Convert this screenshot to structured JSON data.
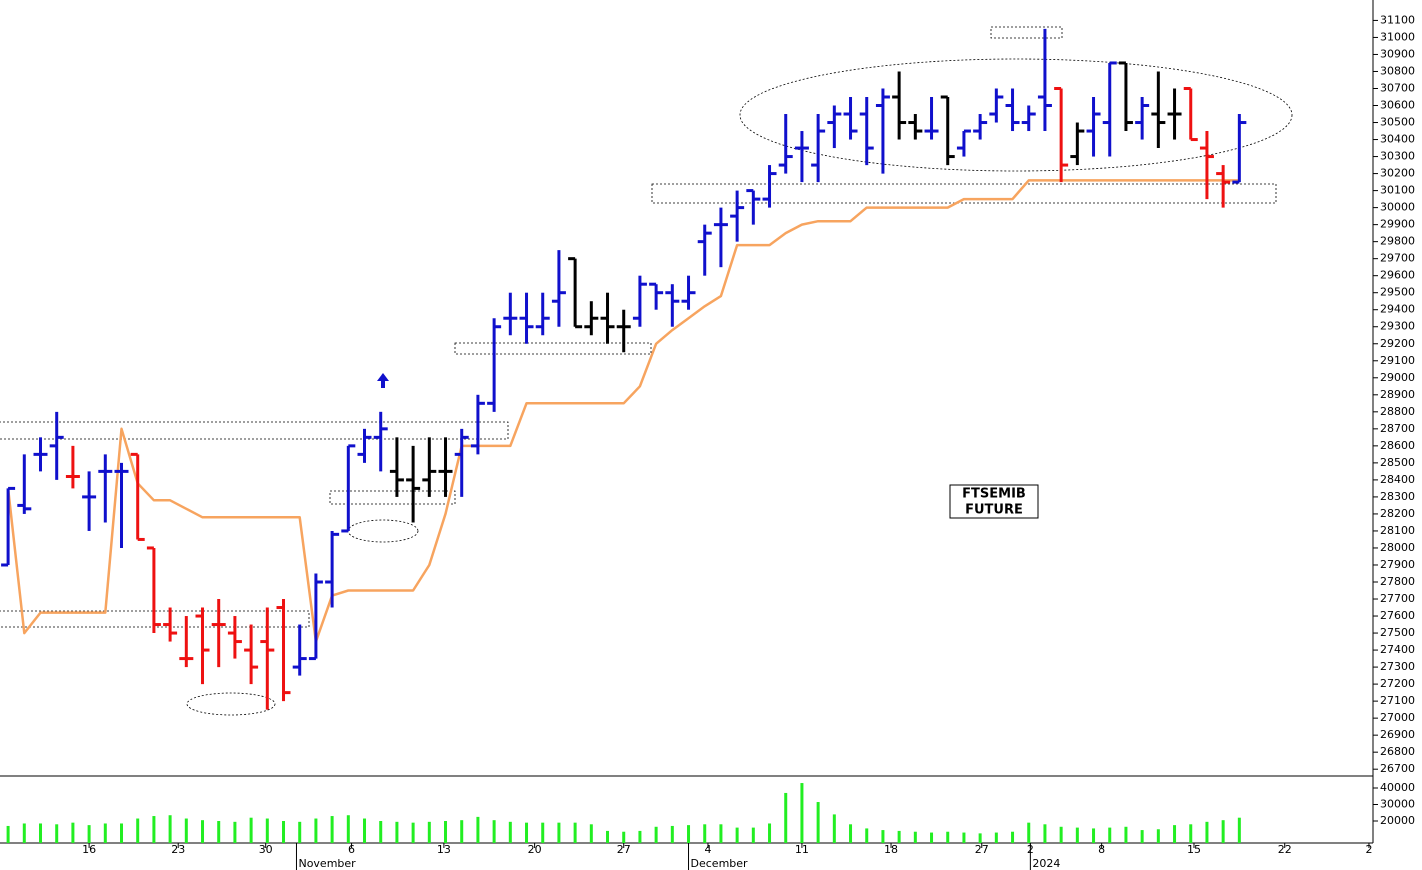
{
  "chart_data": {
    "type": "ohlc",
    "x": [
      0,
      1,
      2,
      3,
      4,
      5,
      6,
      7,
      8,
      9,
      10,
      11,
      12,
      13,
      14,
      15,
      16,
      17,
      18,
      19,
      20,
      21,
      22,
      23,
      24,
      25,
      26,
      27,
      28,
      29,
      30,
      31,
      32,
      33,
      34,
      35,
      36,
      37,
      38,
      39,
      40,
      41,
      42,
      43,
      44,
      45,
      46,
      47,
      48,
      49,
      50,
      51,
      52,
      53,
      54,
      55,
      56,
      57,
      58,
      59,
      60,
      61,
      62,
      63,
      64,
      65,
      66,
      67,
      68,
      69,
      70,
      71,
      72,
      73,
      74,
      75,
      76
    ],
    "open": [
      27900,
      28250,
      28550,
      28600,
      28420,
      28300,
      28450,
      28450,
      28550,
      28000,
      27550,
      27350,
      27600,
      27550,
      27500,
      27400,
      27450,
      27650,
      27300,
      27350,
      27800,
      28100,
      28550,
      28650,
      28450,
      28400,
      28400,
      28450,
      28550,
      28600,
      28850,
      29350,
      29350,
      29300,
      29450,
      29700,
      29300,
      29350,
      29300,
      29350,
      29550,
      29500,
      29450,
      29800,
      29900,
      29950,
      30100,
      30050,
      30250,
      30350,
      30250,
      30500,
      30550,
      30550,
      30600,
      30650,
      30500,
      30450,
      30650,
      30350,
      30450,
      30550,
      30600,
      30500,
      30650,
      30700,
      30300,
      30450,
      30500,
      30850,
      30500,
      30550,
      30550,
      30700,
      30350,
      30200,
      30150
    ],
    "high": [
      28350,
      28550,
      28650,
      28800,
      28600,
      28450,
      28550,
      28500,
      28550,
      28000,
      27650,
      27600,
      27650,
      27700,
      27600,
      27550,
      27650,
      27700,
      27550,
      27850,
      28100,
      28600,
      28700,
      28800,
      28650,
      28600,
      28650,
      28650,
      28700,
      28900,
      29350,
      29500,
      29500,
      29500,
      29750,
      29700,
      29450,
      29500,
      29400,
      29600,
      29550,
      29550,
      29600,
      29900,
      30000,
      30100,
      30100,
      30250,
      30550,
      30450,
      30550,
      30600,
      30650,
      30650,
      30700,
      30800,
      30550,
      30650,
      30650,
      30450,
      30550,
      30700,
      30700,
      30600,
      31050,
      30700,
      30500,
      30650,
      30850,
      30850,
      30650,
      30800,
      30700,
      30700,
      30450,
      30250,
      30550
    ],
    "low": [
      27900,
      28200,
      28450,
      28400,
      28350,
      28100,
      28150,
      28000,
      28050,
      27500,
      27450,
      27300,
      27200,
      27300,
      27350,
      27200,
      27050,
      27100,
      27250,
      27350,
      27650,
      28100,
      28500,
      28450,
      28300,
      28150,
      28300,
      28300,
      28300,
      28550,
      28800,
      29250,
      29200,
      29250,
      29300,
      29300,
      29250,
      29200,
      29150,
      29300,
      29400,
      29300,
      29400,
      29600,
      29650,
      29800,
      29900,
      30000,
      30200,
      30150,
      30150,
      30350,
      30400,
      30250,
      30200,
      30400,
      30400,
      30400,
      30250,
      30300,
      30400,
      30500,
      30450,
      30450,
      30450,
      30150,
      30250,
      30300,
      30300,
      30450,
      30400,
      30350,
      30400,
      30400,
      30050,
      30000,
      30150
    ],
    "close": [
      28350,
      28230,
      28550,
      28650,
      28420,
      28300,
      28450,
      28450,
      28050,
      27550,
      27500,
      27350,
      27400,
      27550,
      27450,
      27300,
      27400,
      27150,
      27350,
      27800,
      28080,
      28600,
      28650,
      28700,
      28400,
      28350,
      28450,
      28450,
      28650,
      28850,
      29300,
      29350,
      29300,
      29350,
      29500,
      29300,
      29350,
      29300,
      29300,
      29550,
      29500,
      29450,
      29500,
      29850,
      29900,
      30000,
      30050,
      30200,
      30300,
      30350,
      30450,
      30550,
      30450,
      30350,
      30650,
      30500,
      30450,
      30450,
      30300,
      30450,
      30500,
      30650,
      30500,
      30550,
      30600,
      30250,
      30450,
      30550,
      30850,
      30500,
      30600,
      30500,
      30550,
      30400,
      30300,
      30150,
      30500
    ],
    "colors": [
      "#1010cc",
      "#1010cc",
      "#1010cc",
      "#1010cc",
      "#ee1111",
      "#1010cc",
      "#1010cc",
      "#1010cc",
      "#ee1111",
      "#ee1111",
      "#ee1111",
      "#ee1111",
      "#ee1111",
      "#ee1111",
      "#ee1111",
      "#ee1111",
      "#ee1111",
      "#ee1111",
      "#1010cc",
      "#1010cc",
      "#1010cc",
      "#1010cc",
      "#1010cc",
      "#1010cc",
      "#000000",
      "#000000",
      "#000000",
      "#000000",
      "#1010cc",
      "#1010cc",
      "#1010cc",
      "#1010cc",
      "#1010cc",
      "#1010cc",
      "#1010cc",
      "#000000",
      "#000000",
      "#000000",
      "#000000",
      "#1010cc",
      "#1010cc",
      "#1010cc",
      "#1010cc",
      "#1010cc",
      "#1010cc",
      "#1010cc",
      "#1010cc",
      "#1010cc",
      "#1010cc",
      "#1010cc",
      "#1010cc",
      "#1010cc",
      "#1010cc",
      "#1010cc",
      "#1010cc",
      "#000000",
      "#000000",
      "#1010cc",
      "#000000",
      "#1010cc",
      "#1010cc",
      "#1010cc",
      "#1010cc",
      "#1010cc",
      "#1010cc",
      "#ee1111",
      "#000000",
      "#1010cc",
      "#1010cc",
      "#000000",
      "#1010cc",
      "#000000",
      "#000000",
      "#ee1111",
      "#ee1111",
      "#ee1111",
      "#1010cc"
    ],
    "line": {
      "color": "#f7a45f",
      "values": [
        28350,
        27500,
        27620,
        27620,
        27620,
        27620,
        27620,
        28700,
        28380,
        28280,
        28280,
        28230,
        28180,
        28180,
        28180,
        28180,
        28180,
        28180,
        28180,
        27450,
        27720,
        27750,
        27750,
        27750,
        27750,
        27750,
        27900,
        28200,
        28600,
        28600,
        28600,
        28600,
        28850,
        28850,
        28850,
        28850,
        28850,
        28850,
        28850,
        28950,
        29200,
        29280,
        29350,
        29420,
        29480,
        29780,
        29780,
        29780,
        29850,
        29900,
        29920,
        29920,
        29920,
        30000,
        30000,
        30000,
        30000,
        30000,
        30000,
        30050,
        30050,
        30050,
        30050,
        30160,
        30160,
        30160,
        30160,
        30160,
        30160,
        30160,
        30160,
        30160,
        30160,
        30160,
        30160,
        30160,
        30160
      ]
    },
    "volume": {
      "color": "#22ee22",
      "values": [
        17000,
        18500,
        18500,
        18000,
        19000,
        17500,
        18500,
        18500,
        21500,
        23000,
        23500,
        21500,
        20500,
        20000,
        19500,
        22000,
        21500,
        20000,
        19500,
        21500,
        23000,
        23500,
        21500,
        20000,
        19500,
        19000,
        19500,
        20000,
        20500,
        22500,
        20500,
        19500,
        19000,
        19000,
        19000,
        19000,
        18000,
        14000,
        13500,
        14000,
        16500,
        17000,
        17500,
        18000,
        18000,
        16000,
        16000,
        18500,
        37000,
        43000,
        31500,
        24000,
        18000,
        15500,
        14500,
        14000,
        13500,
        13000,
        13500,
        13000,
        12500,
        13000,
        13500,
        19000,
        18000,
        16500,
        16000,
        15500,
        16000,
        16500,
        14500,
        15000,
        17500,
        18000,
        19500,
        20500,
        22000
      ],
      "ylim": [
        6670,
        47270
      ],
      "yticks": [
        20000,
        30000,
        40000
      ]
    },
    "xlim": [
      -0.5,
      84.25
    ],
    "xticks": [
      {
        "value": 5.0,
        "label": "16"
      },
      {
        "value": 10.5,
        "label": "23"
      },
      {
        "value": 15.9,
        "label": "30"
      },
      {
        "value": 21.2,
        "label": "6"
      },
      {
        "value": 26.9,
        "label": "13"
      },
      {
        "value": 32.5,
        "label": "20"
      },
      {
        "value": 38.0,
        "label": "27"
      },
      {
        "value": 43.2,
        "label": "4"
      },
      {
        "value": 49.0,
        "label": "11"
      },
      {
        "value": 54.5,
        "label": "18"
      },
      {
        "value": 60.1,
        "label": "27"
      },
      {
        "value": 63.1,
        "label": "2"
      },
      {
        "value": 67.5,
        "label": "8"
      },
      {
        "value": 73.2,
        "label": "15"
      },
      {
        "value": 78.8,
        "label": "22"
      },
      {
        "value": 84.0,
        "label": "2"
      }
    ],
    "month_ticks": [
      {
        "value": 17.8,
        "label": "November"
      },
      {
        "value": 42.0,
        "label": "December"
      },
      {
        "value": 63.1,
        "label": "2024"
      }
    ],
    "ylim": [
      26660,
      31220
    ],
    "yticks": [
      26700,
      26800,
      26900,
      27000,
      27100,
      27200,
      27300,
      27400,
      27500,
      27600,
      27700,
      27800,
      27900,
      28000,
      28100,
      28200,
      28300,
      28400,
      28500,
      28600,
      28700,
      28800,
      28900,
      29000,
      29100,
      29200,
      29300,
      29400,
      29500,
      29600,
      29700,
      29800,
      29900,
      30000,
      30100,
      30200,
      30300,
      30400,
      30500,
      30600,
      30700,
      30800,
      30900,
      31000,
      31100
    ],
    "annotation": [
      "FTSEMIB",
      "FUTURE"
    ]
  }
}
